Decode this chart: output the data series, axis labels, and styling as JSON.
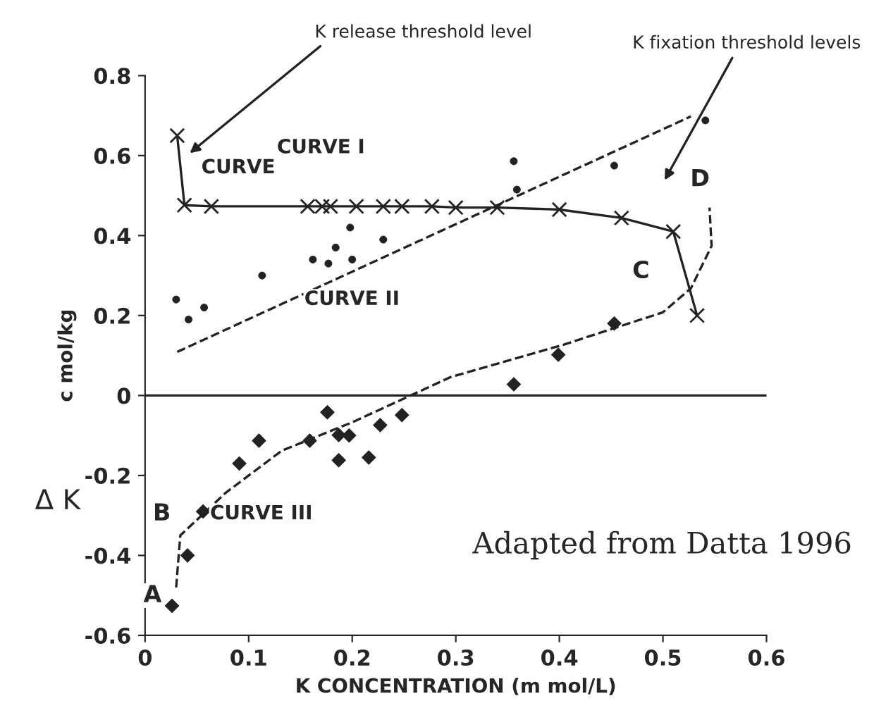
{
  "chart_data": {
    "type": "line",
    "xlabel": "K CONCENTRATION (m mol/L)",
    "ylabel": "c mol/kg",
    "xlim": [
      0,
      0.6
    ],
    "xticks": [
      0,
      0.1,
      0.2,
      0.3,
      0.4,
      0.5,
      0.6
    ],
    "ylim": [
      -0.6,
      0.8
    ],
    "yticks": [
      -0.6,
      -0.4,
      -0.2,
      0,
      0.2,
      0.4,
      0.6,
      0.8
    ],
    "grid": false,
    "legend": false,
    "ref_lines": [
      {
        "axis": "y",
        "value": 0,
        "color": "#222222"
      }
    ],
    "series": [
      {
        "type": "line",
        "marker": "cross",
        "line_style": "solid",
        "color": "#222222",
        "x": [
          0.031,
          0.038,
          0.064,
          0.157,
          0.171,
          0.179,
          0.204,
          0.23,
          0.248,
          0.277,
          0.3,
          0.34,
          0.4,
          0.46,
          0.51,
          0.533
        ],
        "values": [
          0.65,
          0.476,
          0.473,
          0.473,
          0.473,
          0.473,
          0.473,
          0.473,
          0.473,
          0.473,
          0.47,
          0.47,
          0.465,
          0.444,
          0.41,
          0.2
        ]
      },
      {
        "type": "scatter",
        "marker": "circle",
        "color": "#222222",
        "x": [
          0.03,
          0.042,
          0.057,
          0.113,
          0.162,
          0.177,
          0.184,
          0.2,
          0.198,
          0.23,
          0.356,
          0.359,
          0.453,
          0.541
        ],
        "values": [
          0.24,
          0.19,
          0.22,
          0.3,
          0.34,
          0.33,
          0.37,
          0.34,
          0.42,
          0.39,
          0.586,
          0.515,
          0.575,
          0.688
        ]
      },
      {
        "type": "line",
        "marker": "none",
        "line_style": "dashed",
        "color": "#222222",
        "x": [
          0.031,
          0.527
        ],
        "values": [
          0.109,
          0.698
        ]
      },
      {
        "type": "scatter",
        "marker": "diamond",
        "color": "#222222",
        "x": [
          0.026,
          0.041,
          0.056,
          0.091,
          0.11,
          0.159,
          0.176,
          0.187,
          0.187,
          0.197,
          0.216,
          0.227,
          0.248,
          0.356,
          0.399,
          0.453
        ],
        "values": [
          -0.526,
          -0.4,
          -0.29,
          -0.17,
          -0.113,
          -0.113,
          -0.042,
          -0.099,
          -0.162,
          -0.1,
          -0.155,
          -0.074,
          -0.049,
          0.028,
          0.102,
          0.18
        ]
      },
      {
        "type": "line",
        "marker": "none",
        "line_style": "dashed",
        "color": "#222222",
        "x": [
          0.03,
          0.034,
          0.078,
          0.132,
          0.2,
          0.295,
          0.404,
          0.5,
          0.527,
          0.547,
          0.545
        ],
        "values": [
          -0.48,
          -0.35,
          -0.243,
          -0.138,
          -0.067,
          0.046,
          0.127,
          0.208,
          0.268,
          0.374,
          0.47
        ]
      }
    ],
    "annotations": [
      "K release threshold level",
      "K fixation threshold levels",
      "CURVE",
      "CURVE I",
      "CURVE II",
      "CURVE III",
      "A",
      "B",
      "C",
      "D",
      "Δ K",
      "Adapted from Datta 1996"
    ]
  }
}
